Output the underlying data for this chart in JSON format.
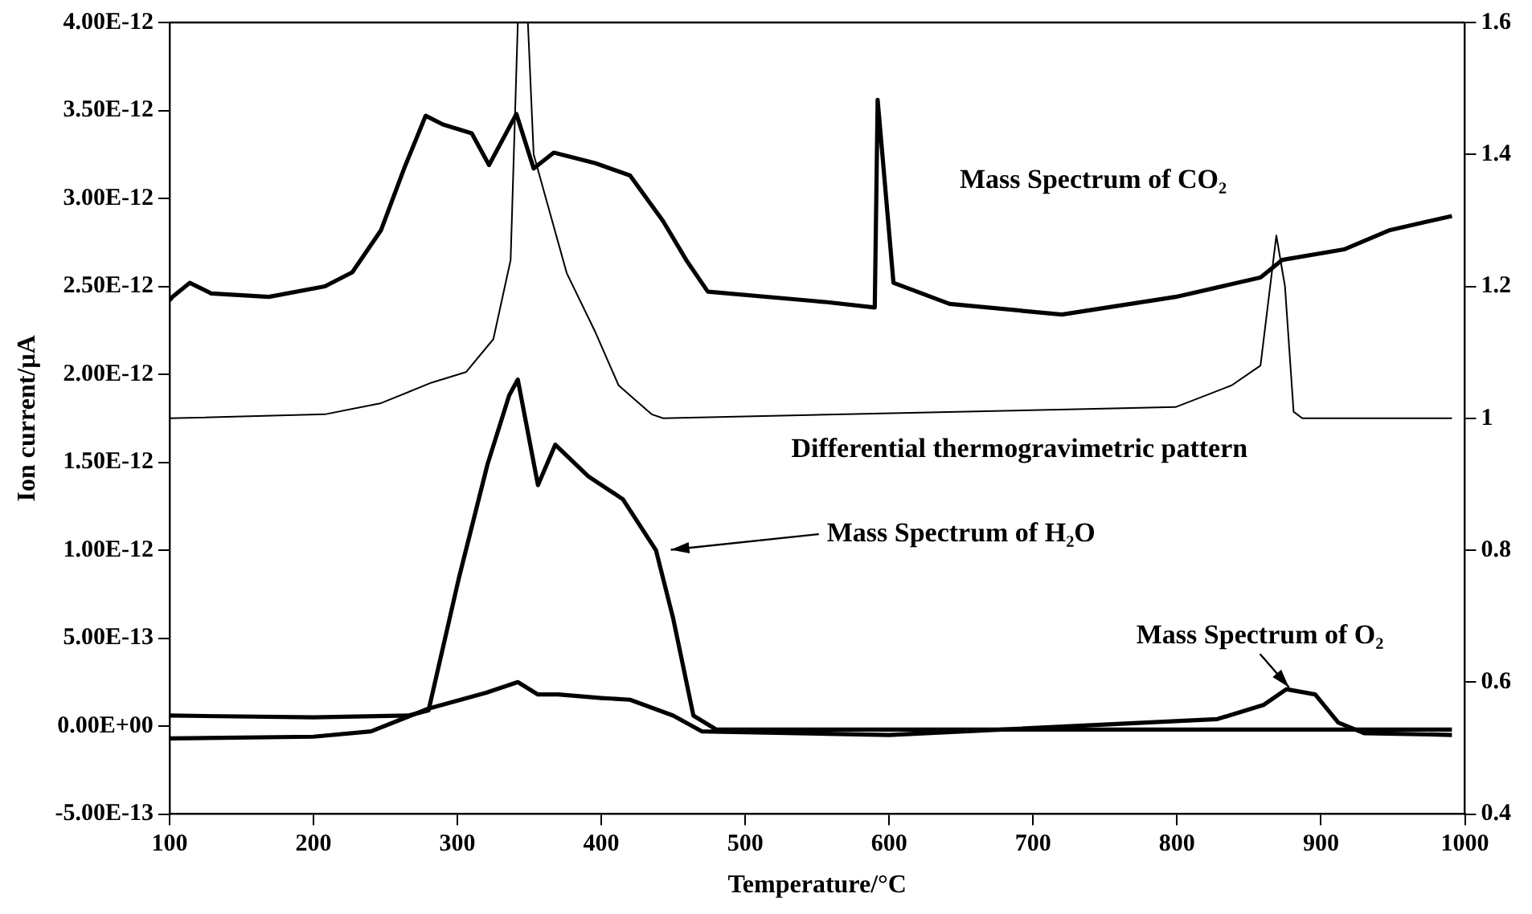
{
  "chart_data": {
    "type": "line",
    "xlabel": "Temperature/°C",
    "ylabel": "Ion current/µA",
    "xlim": [
      100,
      1000
    ],
    "xticks": [
      100,
      200,
      300,
      400,
      500,
      600,
      700,
      800,
      900,
      1000
    ],
    "ylim": [
      -5e-13,
      4e-12
    ],
    "yticks": [
      {
        "value": -5e-13,
        "label": "-5.00E-13"
      },
      {
        "value": 0,
        "label": "0.00E+00"
      },
      {
        "value": 5e-13,
        "label": "5.00E-13"
      },
      {
        "value": 1e-12,
        "label": "1.00E-12"
      },
      {
        "value": 1.5e-12,
        "label": "1.50E-12"
      },
      {
        "value": 2e-12,
        "label": "2.00E-12"
      },
      {
        "value": 2.5e-12,
        "label": "2.50E-12"
      },
      {
        "value": 3e-12,
        "label": "3.00E-12"
      },
      {
        "value": 3.5e-12,
        "label": "3.50E-12"
      },
      {
        "value": 4e-12,
        "label": "4.00E-12"
      }
    ],
    "y2lim": [
      0.4,
      1.6
    ],
    "y2ticks": [
      0.4,
      0.6,
      0.8,
      1,
      1.2,
      1.4,
      1.6
    ],
    "grid": false,
    "legend": false,
    "marker": "none",
    "line_style": "solid",
    "series": [
      {
        "color": "#000000",
        "x": [
          100,
          102,
          114,
          129,
          169,
          208,
          227,
          247,
          263,
          278,
          290,
          310,
          322,
          341,
          353,
          367,
          396,
          420,
          443,
          459,
          474,
          557,
          590,
          592,
          603,
          642,
          720,
          799,
          858,
          873,
          916,
          948,
          991
        ],
        "values": [
          2.42e-12,
          2.44e-12,
          2.52e-12,
          2.46e-12,
          2.44e-12,
          2.5e-12,
          2.58e-12,
          2.82e-12,
          3.17e-12,
          3.47e-12,
          3.42e-12,
          3.37e-12,
          3.19e-12,
          3.48e-12,
          3.17e-12,
          3.26e-12,
          3.2e-12,
          3.13e-12,
          2.87e-12,
          2.65e-12,
          2.47e-12,
          2.41e-12,
          2.38e-12,
          3.56e-12,
          2.52e-12,
          2.4e-12,
          2.34e-12,
          2.44e-12,
          2.55e-12,
          2.65e-12,
          2.71e-12,
          2.82e-12,
          2.9e-12
        ]
      },
      {
        "color": "#000000",
        "axis": "y2",
        "x": [
          100,
          208,
          247,
          282,
          306,
          325,
          337,
          342,
          349,
          353,
          376,
          396,
          412,
          435,
          443,
          799,
          838,
          858,
          869,
          875,
          881,
          887,
          991
        ],
        "values": [
          1.0,
          1.006,
          1.023,
          1.054,
          1.07,
          1.12,
          1.24,
          1.6,
          1.6,
          1.4,
          1.22,
          1.13,
          1.05,
          1.006,
          1.0,
          1.017,
          1.05,
          1.08,
          1.277,
          1.2,
          1.01,
          1.0,
          1.0
        ]
      },
      {
        "color": "#000000",
        "x": [
          100,
          200,
          266,
          280,
          301,
          321,
          336,
          342,
          356,
          368,
          391,
          415,
          438,
          450,
          464,
          480,
          600,
          800,
          991
        ],
        "values": [
          6e-14,
          5e-14,
          6e-14,
          9e-14,
          8.4e-13,
          1.49e-12,
          1.88e-12,
          1.97e-12,
          1.37e-12,
          1.6e-12,
          1.42e-12,
          1.29e-12,
          1e-12,
          6.1e-13,
          6e-14,
          -2e-14,
          -2e-14,
          -2e-14,
          -2e-14
        ]
      },
      {
        "color": "#000000",
        "x": [
          100,
          200,
          240,
          280,
          320,
          342,
          356,
          370,
          400,
          420,
          450,
          470,
          600,
          828,
          860,
          876,
          896,
          912,
          930,
          991
        ],
        "values": [
          -7e-14,
          -6e-14,
          -3e-14,
          1e-13,
          1.9e-13,
          2.5e-13,
          1.8e-13,
          1.8e-13,
          1.6e-13,
          1.5e-13,
          6e-14,
          -3e-14,
          -5e-14,
          4e-14,
          1.2e-13,
          2.1e-13,
          1.8e-13,
          2e-14,
          -4e-14,
          -5e-14
        ]
      }
    ],
    "annotations": [
      "Mass Spectrum of CO₂",
      "Differential thermogravimetric pattern",
      {
        "text": "Mass Spectrum of H₂O",
        "x": 445,
        "y": 1e-12
      },
      {
        "text": "Mass Spectrum of O₂",
        "x": 880,
        "y": 2e-13
      }
    ]
  }
}
